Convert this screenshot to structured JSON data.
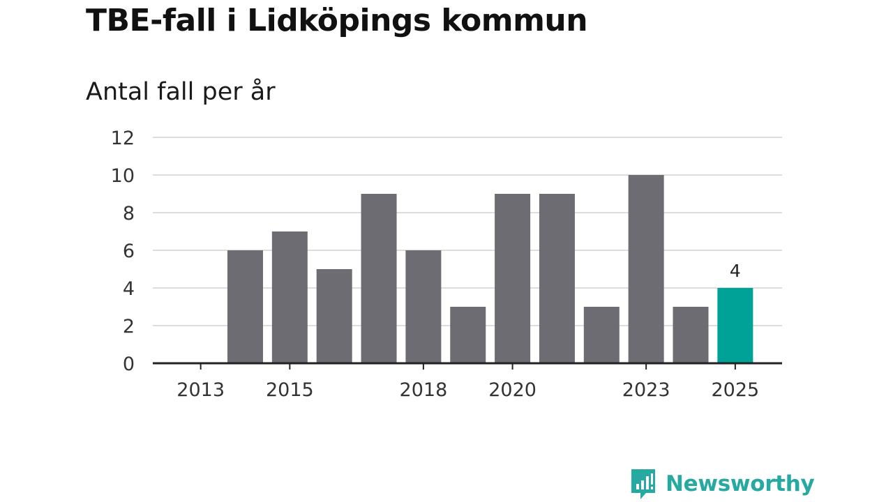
{
  "chart_data": {
    "type": "bar",
    "title": "TBE-fall i Lidköpings kommun",
    "subtitle": "Antal fall per år",
    "xlabel": "",
    "ylabel": "",
    "categories": [
      "2013",
      "2014",
      "2015",
      "2016",
      "2017",
      "2018",
      "2019",
      "2020",
      "2021",
      "2022",
      "2023",
      "2024",
      "2025"
    ],
    "values": [
      0,
      6,
      7,
      5,
      9,
      6,
      3,
      9,
      9,
      3,
      10,
      3,
      4
    ],
    "x_tick_labels": [
      "2013",
      "2015",
      "2018",
      "2020",
      "2023",
      "2025"
    ],
    "y_ticks": [
      0,
      2,
      4,
      6,
      8,
      10,
      12
    ],
    "ylim": [
      0,
      12
    ],
    "grid": true,
    "highlight_category": "2025",
    "highlight_label": "4",
    "colors": {
      "bar": "#6d6c73",
      "highlight": "#00a298",
      "grid": "#dddddd",
      "axis": "#222222"
    }
  },
  "branding": {
    "name": "Newsworthy",
    "color": "#26a9a0"
  }
}
